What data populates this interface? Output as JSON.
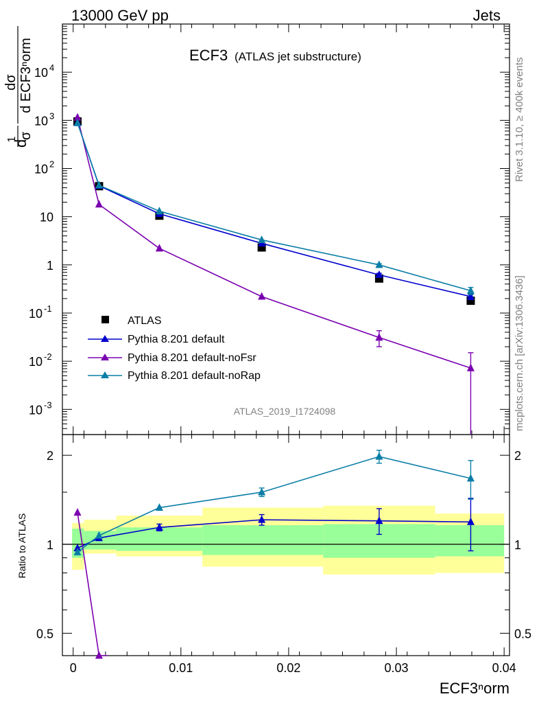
{
  "header": {
    "left": "13000 GeV pp",
    "right": "Jets"
  },
  "title": {
    "main": "ECF3",
    "sub": "(ATLAS jet substructure)"
  },
  "side_labels": {
    "rivet": "Rivet 3.1.10, ≥ 400k events",
    "mcplots": "mcplots.cern.ch [arXiv:1306.3436]"
  },
  "analysis_id": "ATLAS_2019_I1724098",
  "axes": {
    "y_top_label": {
      "frac1_num": "1",
      "frac1_den": "σ",
      "frac2_num": "dσ",
      "frac2_den": "d ECF3ⁿorm",
      "prefix": "d"
    },
    "y_ratio_label": "Ratio to ATLAS",
    "x_label": "ECF3ⁿorm",
    "x_ticks": [
      "0",
      "0.01",
      "0.02",
      "0.03",
      "0.04"
    ],
    "y_top_ticks": [
      {
        "base": "10",
        "exp": "-3"
      },
      {
        "base": "10",
        "exp": "-2"
      },
      {
        "base": "10",
        "exp": "-1"
      },
      {
        "base": "1",
        "exp": ""
      },
      {
        "base": "10",
        "exp": ""
      },
      {
        "base": "10",
        "exp": "2"
      },
      {
        "base": "10",
        "exp": "3"
      },
      {
        "base": "10",
        "exp": "4"
      }
    ],
    "y_ratio_ticks": [
      "0.5",
      "1",
      "2"
    ]
  },
  "legend": [
    {
      "label": "ATLAS",
      "marker": "square",
      "color": "#000000"
    },
    {
      "label": "Pythia 8.201 default",
      "marker": "triangle",
      "color": "#0000cc"
    },
    {
      "label": "Pythia 8.201 default-noFsr",
      "marker": "triangle",
      "color": "#7a00b0"
    },
    {
      "label": "Pythia 8.201 default-noRap",
      "marker": "triangle",
      "color": "#0a7ea6"
    }
  ],
  "chart_data": {
    "type": "scatter",
    "x_range": [
      -0.001,
      0.0405
    ],
    "top_panel": {
      "y_scale": "log",
      "y_range": [
        0.0003,
        100000
      ],
      "series": [
        {
          "name": "ATLAS",
          "color": "#000000",
          "marker": "square",
          "x": [
            0.0004,
            0.0024,
            0.008,
            0.0175,
            0.0284,
            0.0369
          ],
          "y": [
            950,
            43,
            10.5,
            2.3,
            0.52,
            0.18
          ]
        },
        {
          "name": "Pythia 8.201 default",
          "color": "#0000cc",
          "marker": "triangle",
          "x": [
            0.0004,
            0.0024,
            0.008,
            0.0175,
            0.0284,
            0.0369
          ],
          "y": [
            900,
            44,
            11.5,
            2.8,
            0.62,
            0.22
          ],
          "err": [
            0,
            0,
            0,
            0,
            0.05,
            0.03
          ]
        },
        {
          "name": "Pythia 8.201 default-noFsr",
          "color": "#7a00b0",
          "marker": "triangle",
          "x": [
            0.0004,
            0.0024,
            0.008,
            0.0175,
            0.0284,
            0.0369
          ],
          "y": [
            1150,
            18,
            2.2,
            0.22,
            0.031,
            0.0072
          ],
          "err_low": [
            0,
            0,
            0,
            0,
            0.011,
            0.0072
          ],
          "err_high": [
            0,
            0,
            0,
            0,
            0.012,
            0.0078
          ]
        },
        {
          "name": "Pythia 8.201 default-noRap",
          "color": "#0a7ea6",
          "marker": "triangle",
          "x": [
            0.0004,
            0.0024,
            0.008,
            0.0175,
            0.0284,
            0.0369
          ],
          "y": [
            880,
            45,
            13,
            3.3,
            1.0,
            0.29
          ],
          "err": [
            0,
            0,
            0,
            0,
            0.05,
            0.05
          ]
        }
      ]
    },
    "ratio_panel": {
      "y_scale": "log",
      "y_range": [
        0.42,
        2.35
      ],
      "bands": [
        {
          "x0": -0.0001,
          "x1": 0.001,
          "yellow": [
            0.82,
            1.18
          ],
          "green": [
            0.9,
            1.13
          ]
        },
        {
          "x0": 0.001,
          "x1": 0.004,
          "yellow": [
            0.93,
            1.21
          ],
          "green": [
            0.96,
            1.11
          ]
        },
        {
          "x0": 0.004,
          "x1": 0.012,
          "yellow": [
            0.91,
            1.25
          ],
          "green": [
            0.95,
            1.14
          ]
        },
        {
          "x0": 0.012,
          "x1": 0.0232,
          "yellow": [
            0.84,
            1.33
          ],
          "green": [
            0.92,
            1.16
          ]
        },
        {
          "x0": 0.0232,
          "x1": 0.0336,
          "yellow": [
            0.79,
            1.35
          ],
          "green": [
            0.9,
            1.17
          ]
        },
        {
          "x0": 0.0336,
          "x1": 0.04,
          "yellow": [
            0.8,
            1.27
          ],
          "green": [
            0.91,
            1.16
          ]
        }
      ],
      "series": [
        {
          "name": "Pythia 8.201 default",
          "color": "#0000cc",
          "x": [
            0.0004,
            0.0024,
            0.008,
            0.0175,
            0.0284,
            0.0369
          ],
          "y": [
            0.97,
            1.05,
            1.14,
            1.21,
            1.2,
            1.19
          ],
          "err": [
            0,
            0,
            0.03,
            0.05,
            0.12,
            0.24
          ]
        },
        {
          "name": "Pythia 8.201 default-noFsr",
          "color": "#7a00b0",
          "x": [
            0.0004,
            0.0024,
            0.0032
          ],
          "y": [
            1.28,
            0.42,
            0.34
          ],
          "err": [
            0,
            0,
            0
          ]
        },
        {
          "name": "Pythia 8.201 default-noRap",
          "color": "#0a7ea6",
          "x": [
            0.0004,
            0.0024,
            0.008,
            0.0175,
            0.0284,
            0.0369
          ],
          "y": [
            0.94,
            1.07,
            1.33,
            1.5,
            1.98,
            1.67
          ],
          "err": [
            0,
            0,
            0,
            0.05,
            0.1,
            0.25
          ]
        }
      ]
    }
  }
}
